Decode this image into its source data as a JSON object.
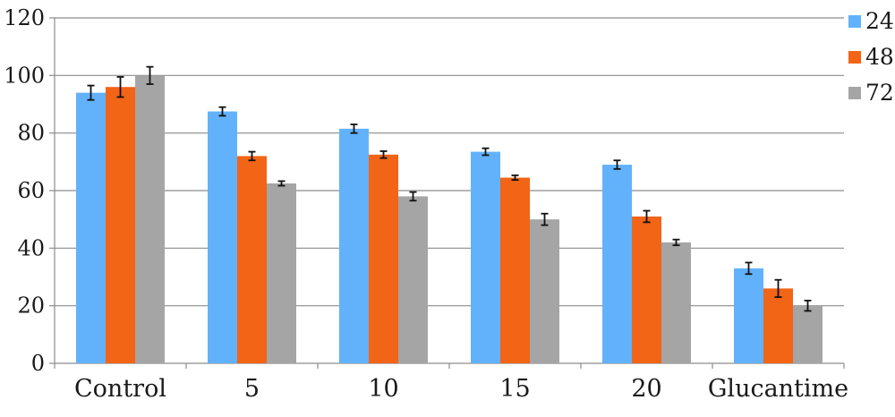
{
  "chart_data": {
    "type": "bar",
    "title": "",
    "xlabel": "",
    "ylabel": "",
    "categories": [
      "Control",
      "5",
      "10",
      "15",
      "20",
      "Glucantime"
    ],
    "ylim": [
      0,
      120
    ],
    "yticks": [
      0,
      20,
      40,
      60,
      80,
      100,
      120
    ],
    "ytick_labels": [
      "0",
      "20",
      "40",
      "60",
      "80",
      "100",
      "120"
    ],
    "grid": true,
    "legend_position": "right",
    "series": [
      {
        "name": "24",
        "color": "#62b2fb",
        "values": [
          94,
          87.5,
          81.5,
          73.5,
          69,
          33
        ],
        "errors": [
          2.5,
          1.5,
          1.5,
          1.2,
          1.5,
          2
        ]
      },
      {
        "name": "48",
        "color": "#f26416",
        "values": [
          96,
          72,
          72.5,
          64.5,
          51,
          26
        ],
        "errors": [
          3.5,
          1.5,
          1.2,
          0.8,
          2,
          3
        ]
      },
      {
        "name": "72",
        "color": "#a5a5a5",
        "values": [
          100,
          62.5,
          58,
          50,
          42,
          20
        ],
        "errors": [
          3,
          0.8,
          1.5,
          2,
          1,
          1.8
        ]
      }
    ]
  }
}
